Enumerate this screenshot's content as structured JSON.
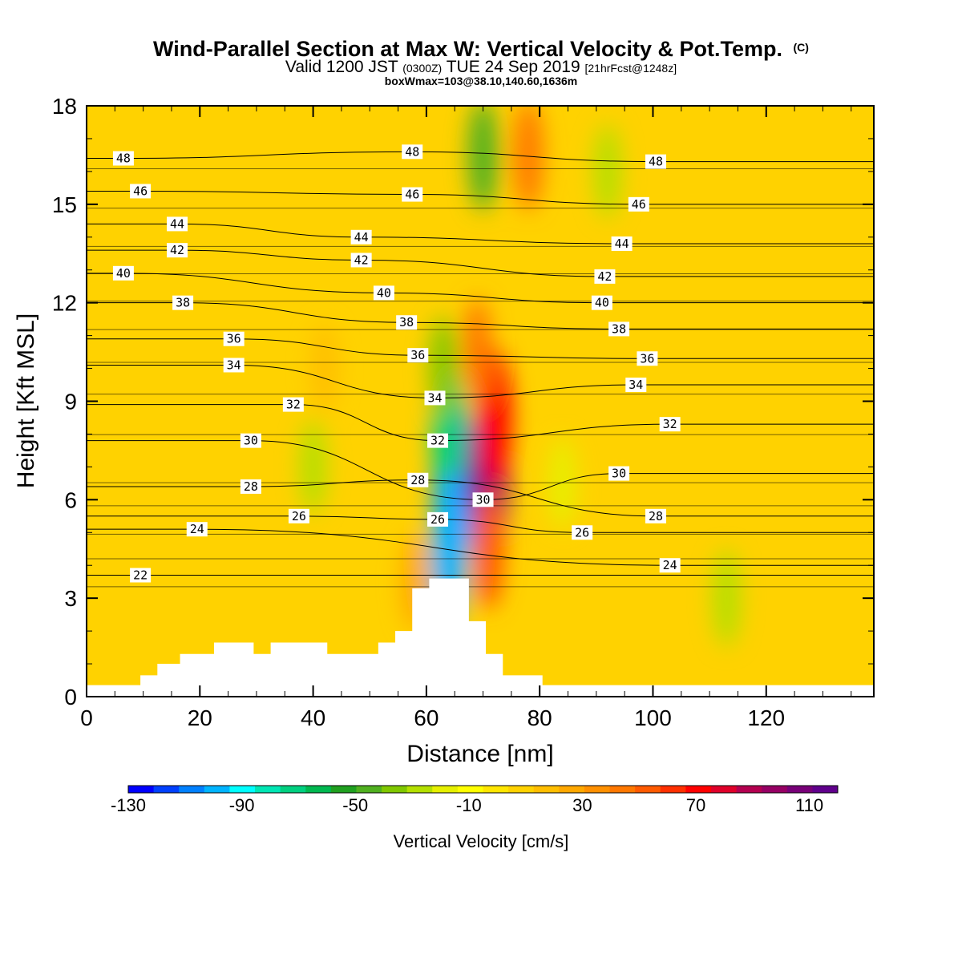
{
  "title": {
    "main": "Wind-Parallel Section at Max W: Vertical Velocity & Pot.Temp.",
    "copyright": "(C)",
    "valid_pre": "Valid 1200 JST",
    "valid_z": "(0300Z)",
    "valid_post": "TUE 24 Sep 2019",
    "fcst": "[21hrFcst@1248z]",
    "boxmax": "boxWmax=103@38.10,140.60,1636m"
  },
  "chart_data": {
    "type": "heatmap",
    "xlabel": "Distance [nm]",
    "ylabel": "Height [Kft MSL]",
    "xlim": [
      0,
      139
    ],
    "ylim": [
      0,
      18
    ],
    "x_ticks": [
      0,
      20,
      40,
      60,
      80,
      100,
      120
    ],
    "y_ticks": [
      0,
      3,
      6,
      9,
      12,
      15,
      18
    ],
    "colorbar": {
      "label": "Vertical Velocity [cm/s]",
      "min": -130,
      "max": 120,
      "step": 10,
      "tick_values": [
        -130,
        -90,
        -50,
        -10,
        30,
        70,
        110
      ],
      "tick_labels": [
        "-130",
        "-90",
        "-50",
        "-10",
        "30",
        "70",
        "110"
      ],
      "colors": [
        "#0000ff",
        "#0040ff",
        "#0080ff",
        "#00b4ff",
        "#00ffff",
        "#00e6b4",
        "#00d080",
        "#00b850",
        "#20a020",
        "#50b020",
        "#80c800",
        "#b4e000",
        "#e6f000",
        "#ffff00",
        "#ffe600",
        "#ffd200",
        "#ffbe00",
        "#ffa800",
        "#ff9000",
        "#ff7800",
        "#ff5a00",
        "#ff3000",
        "#ff0000",
        "#e0002a",
        "#b40050",
        "#960064",
        "#780078",
        "#60008c"
      ]
    },
    "velocity_features": [
      {
        "x": 65,
        "y": 6.5,
        "w": -125
      },
      {
        "x": 64,
        "y": 8.0,
        "w": -75
      },
      {
        "x": 64,
        "y": 4.5,
        "w": -95
      },
      {
        "x": 63,
        "y": 10.0,
        "w": -35
      },
      {
        "x": 71,
        "y": 6.5,
        "w": 110
      },
      {
        "x": 72,
        "y": 8.5,
        "w": 75
      },
      {
        "x": 71,
        "y": 4.5,
        "w": 55
      },
      {
        "x": 69,
        "y": 10.5,
        "w": 40
      },
      {
        "x": 70,
        "y": 16.5,
        "w": -45
      },
      {
        "x": 78,
        "y": 16.5,
        "w": 45
      },
      {
        "x": 92,
        "y": 16.0,
        "w": -25
      },
      {
        "x": 40,
        "y": 7.0,
        "w": -25
      },
      {
        "x": 113,
        "y": 3.0,
        "w": -28
      },
      {
        "x": 42,
        "y": 10.0,
        "w": 20
      },
      {
        "x": 58,
        "y": 3.5,
        "w": 28
      },
      {
        "x": 84,
        "y": 6.5,
        "w": -22
      }
    ],
    "contour_labels": [
      {
        "text": "48",
        "x": 6.5,
        "y": 16.4
      },
      {
        "text": "46",
        "x": 9.5,
        "y": 15.4
      },
      {
        "text": "44",
        "x": 16,
        "y": 14.4
      },
      {
        "text": "42",
        "x": 16,
        "y": 13.6
      },
      {
        "text": "40",
        "x": 6.5,
        "y": 12.9
      },
      {
        "text": "38",
        "x": 17,
        "y": 12.0
      },
      {
        "text": "36",
        "x": 26,
        "y": 10.9
      },
      {
        "text": "34",
        "x": 26,
        "y": 10.1
      },
      {
        "text": "32",
        "x": 36.5,
        "y": 8.9
      },
      {
        "text": "30",
        "x": 29,
        "y": 7.8
      },
      {
        "text": "28",
        "x": 29,
        "y": 6.4
      },
      {
        "text": "26",
        "x": 37.5,
        "y": 5.5
      },
      {
        "text": "24",
        "x": 19.5,
        "y": 5.1
      },
      {
        "text": "22",
        "x": 9.5,
        "y": 3.7
      },
      {
        "text": "48",
        "x": 57.5,
        "y": 16.6
      },
      {
        "text": "46",
        "x": 57.5,
        "y": 15.3
      },
      {
        "text": "44",
        "x": 48.5,
        "y": 14.0
      },
      {
        "text": "42",
        "x": 48.5,
        "y": 13.3
      },
      {
        "text": "40",
        "x": 52.5,
        "y": 12.3
      },
      {
        "text": "38",
        "x": 56.5,
        "y": 11.4
      },
      {
        "text": "36",
        "x": 58.5,
        "y": 10.4
      },
      {
        "text": "34",
        "x": 61.5,
        "y": 9.1
      },
      {
        "text": "32",
        "x": 62,
        "y": 7.8
      },
      {
        "text": "28",
        "x": 58.5,
        "y": 6.6
      },
      {
        "text": "26",
        "x": 62,
        "y": 5.4
      },
      {
        "text": "30",
        "x": 70,
        "y": 6.0
      },
      {
        "text": "48",
        "x": 100.5,
        "y": 16.3
      },
      {
        "text": "46",
        "x": 97.5,
        "y": 15.0
      },
      {
        "text": "44",
        "x": 94.5,
        "y": 13.8
      },
      {
        "text": "42",
        "x": 91.5,
        "y": 12.8
      },
      {
        "text": "40",
        "x": 91,
        "y": 12.0
      },
      {
        "text": "38",
        "x": 94,
        "y": 11.2
      },
      {
        "text": "36",
        "x": 99,
        "y": 10.3
      },
      {
        "text": "34",
        "x": 97,
        "y": 9.5
      },
      {
        "text": "32",
        "x": 103,
        "y": 8.3
      },
      {
        "text": "30",
        "x": 94,
        "y": 6.8
      },
      {
        "text": "28",
        "x": 100.5,
        "y": 5.5
      },
      {
        "text": "26",
        "x": 87.5,
        "y": 5.0
      },
      {
        "text": "24",
        "x": 103,
        "y": 4.0
      }
    ],
    "terrain": [
      [
        0,
        0.35
      ],
      [
        9.5,
        0.35
      ],
      [
        9.5,
        0.65
      ],
      [
        12.5,
        0.65
      ],
      [
        12.5,
        1.0
      ],
      [
        16.5,
        1.0
      ],
      [
        16.5,
        1.3
      ],
      [
        22.5,
        1.3
      ],
      [
        22.5,
        1.65
      ],
      [
        29.5,
        1.65
      ],
      [
        29.5,
        1.3
      ],
      [
        32.5,
        1.3
      ],
      [
        32.5,
        1.65
      ],
      [
        42.5,
        1.65
      ],
      [
        42.5,
        1.3
      ],
      [
        51.5,
        1.3
      ],
      [
        51.5,
        1.65
      ],
      [
        54.5,
        1.65
      ],
      [
        54.5,
        2.0
      ],
      [
        57.5,
        2.0
      ],
      [
        57.5,
        3.3
      ],
      [
        60.5,
        3.3
      ],
      [
        60.5,
        3.6
      ],
      [
        67.5,
        3.6
      ],
      [
        67.5,
        2.3
      ],
      [
        70.5,
        2.3
      ],
      [
        70.5,
        1.3
      ],
      [
        73.5,
        1.3
      ],
      [
        73.5,
        0.65
      ],
      [
        80.5,
        0.65
      ],
      [
        80.5,
        0.35
      ],
      [
        139,
        0.35
      ]
    ]
  }
}
